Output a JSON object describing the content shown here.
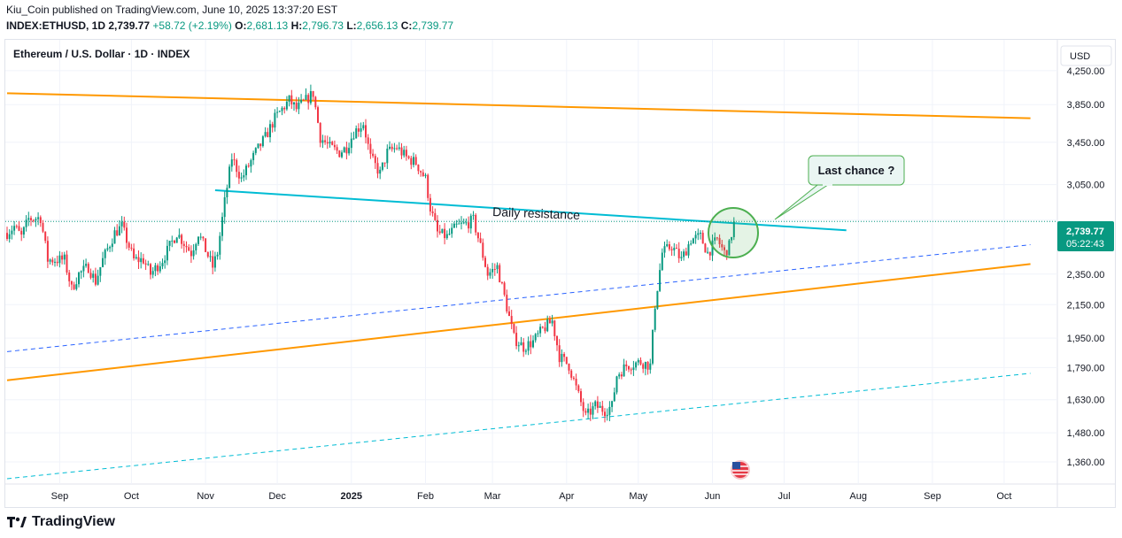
{
  "header": {
    "publisher_line": "Kiu_Coin published on TradingView.com, June 10, 2025 13:37:20 EST",
    "symbol": "INDEX:ETHUSD, 1D",
    "last": "2,739.77",
    "change": "+58.72 (+2.19%)",
    "o_label": "O:",
    "o_value": "2,681.13",
    "h_label": "H:",
    "h_value": "2,796.73",
    "l_label": "L:",
    "l_value": "2,656.13",
    "c_label": "C:",
    "c_value": "2,739.77"
  },
  "chart_title": "Ethereum / U.S. Dollar · 1D · INDEX",
  "currency_button": "USD",
  "price_label": {
    "price": "2,739.77",
    "countdown": "05:22:43"
  },
  "annotations": {
    "daily_resistance": "Daily resistance",
    "callout": "Last chance ?"
  },
  "footer": {
    "brand": "TradingView"
  },
  "colors": {
    "up": "#089981",
    "down": "#f23645",
    "trendline": "#00bcd4",
    "channel": "#ff9800",
    "dashed_blue": "#2962ff",
    "circle": "#4caf50"
  },
  "chart_data": {
    "type": "candlestick",
    "yscale": "log",
    "ylim": [
      1275,
      4650
    ],
    "y_ticks": [
      4250,
      3850,
      3450,
      3050,
      2750,
      2350,
      2150,
      1950,
      1790,
      1630,
      1480,
      1360
    ],
    "y_tick_labels": [
      "4,250.00",
      "3,850.00",
      "3,450.00",
      "3,050.00",
      "",
      "2,350.00",
      "2,150.00",
      "1,950.00",
      "1,790.00",
      "1,630.00",
      "1,480.00",
      "1,360.00"
    ],
    "x_start": "2024-08-10",
    "x_ticks": [
      {
        "date": "2024-09-01",
        "label": "Sep"
      },
      {
        "date": "2024-10-01",
        "label": "Oct"
      },
      {
        "date": "2024-11-01",
        "label": "Nov"
      },
      {
        "date": "2024-12-01",
        "label": "Dec"
      },
      {
        "date": "2025-01-01",
        "label": "2025"
      },
      {
        "date": "2025-02-01",
        "label": "Feb"
      },
      {
        "date": "2025-03-01",
        "label": "Mar"
      },
      {
        "date": "2025-04-01",
        "label": "Apr"
      },
      {
        "date": "2025-05-01",
        "label": "May"
      },
      {
        "date": "2025-06-01",
        "label": "Jun"
      },
      {
        "date": "2025-07-01",
        "label": "Jul"
      },
      {
        "date": "2025-08-01",
        "label": "Aug"
      },
      {
        "date": "2025-09-01",
        "label": "Sep"
      },
      {
        "date": "2025-10-01",
        "label": "Oct"
      }
    ],
    "close_path": [
      [
        "2024-08-10",
        2650
      ],
      [
        "2024-08-13",
        2700
      ],
      [
        "2024-08-16",
        2620
      ],
      [
        "2024-08-19",
        2760
      ],
      [
        "2024-08-24",
        2770
      ],
      [
        "2024-08-27",
        2450
      ],
      [
        "2024-09-03",
        2450
      ],
      [
        "2024-09-06",
        2250
      ],
      [
        "2024-09-09",
        2350
      ],
      [
        "2024-09-13",
        2400
      ],
      [
        "2024-09-16",
        2300
      ],
      [
        "2024-09-19",
        2450
      ],
      [
        "2024-09-24",
        2650
      ],
      [
        "2024-09-27",
        2700
      ],
      [
        "2024-10-02",
        2450
      ],
      [
        "2024-10-06",
        2450
      ],
      [
        "2024-10-09",
        2350
      ],
      [
        "2024-10-14",
        2450
      ],
      [
        "2024-10-20",
        2650
      ],
      [
        "2024-10-26",
        2500
      ],
      [
        "2024-10-29",
        2650
      ],
      [
        "2024-11-04",
        2400
      ],
      [
        "2024-11-06",
        2500
      ],
      [
        "2024-11-09",
        2900
      ],
      [
        "2024-11-12",
        3300
      ],
      [
        "2024-11-16",
        3100
      ],
      [
        "2024-11-22",
        3350
      ],
      [
        "2024-11-26",
        3500
      ],
      [
        "2024-11-30",
        3700
      ],
      [
        "2024-12-06",
        3900
      ],
      [
        "2024-12-09",
        3800
      ],
      [
        "2024-12-13",
        3900
      ],
      [
        "2024-12-16",
        3980
      ],
      [
        "2024-12-19",
        3500
      ],
      [
        "2024-12-23",
        3400
      ],
      [
        "2024-12-27",
        3350
      ],
      [
        "2024-12-30",
        3400
      ],
      [
        "2025-01-02",
        3550
      ],
      [
        "2025-01-06",
        3650
      ],
      [
        "2025-01-09",
        3300
      ],
      [
        "2025-01-13",
        3150
      ],
      [
        "2025-01-16",
        3350
      ],
      [
        "2025-01-20",
        3400
      ],
      [
        "2025-01-24",
        3300
      ],
      [
        "2025-01-28",
        3250
      ],
      [
        "2025-02-01",
        3100
      ],
      [
        "2025-02-03",
        2850
      ],
      [
        "2025-02-06",
        2650
      ],
      [
        "2025-02-10",
        2620
      ],
      [
        "2025-02-14",
        2700
      ],
      [
        "2025-02-18",
        2720
      ],
      [
        "2025-02-21",
        2750
      ],
      [
        "2025-02-24",
        2550
      ],
      [
        "2025-02-27",
        2350
      ],
      [
        "2025-03-03",
        2400
      ],
      [
        "2025-03-06",
        2200
      ],
      [
        "2025-03-10",
        1950
      ],
      [
        "2025-03-14",
        1900
      ],
      [
        "2025-03-18",
        1930
      ],
      [
        "2025-03-22",
        2000
      ],
      [
        "2025-03-26",
        2050
      ],
      [
        "2025-03-29",
        1850
      ],
      [
        "2025-04-02",
        1800
      ],
      [
        "2025-04-06",
        1650
      ],
      [
        "2025-04-09",
        1550
      ],
      [
        "2025-04-13",
        1600
      ],
      [
        "2025-04-17",
        1580
      ],
      [
        "2025-04-20",
        1600
      ],
      [
        "2025-04-22",
        1750
      ],
      [
        "2025-04-26",
        1800
      ],
      [
        "2025-05-02",
        1820
      ],
      [
        "2025-05-06",
        1800
      ],
      [
        "2025-05-08",
        2150
      ],
      [
        "2025-05-11",
        2500
      ],
      [
        "2025-05-15",
        2550
      ],
      [
        "2025-05-19",
        2450
      ],
      [
        "2025-05-23",
        2600
      ],
      [
        "2025-05-27",
        2620
      ],
      [
        "2025-05-30",
        2500
      ],
      [
        "2025-06-03",
        2600
      ],
      [
        "2025-06-06",
        2500
      ],
      [
        "2025-06-08",
        2550
      ],
      [
        "2025-06-10",
        2740
      ]
    ],
    "lines": [
      {
        "name": "upper-channel",
        "style": "solid",
        "color": "#ff9800",
        "points": [
          [
            "2024-08-10",
            3980
          ],
          [
            "2025-10-12",
            3700
          ]
        ]
      },
      {
        "name": "lower-channel",
        "style": "solid",
        "color": "#ff9800",
        "points": [
          [
            "2024-08-10",
            1725
          ],
          [
            "2025-10-12",
            2420
          ]
        ]
      },
      {
        "name": "daily-resistance",
        "style": "solid",
        "color": "#00bcd4",
        "points": [
          [
            "2024-11-05",
            3000
          ],
          [
            "2025-07-27",
            2670
          ]
        ]
      },
      {
        "name": "blue-dashed",
        "style": "dashed",
        "color": "#2962ff",
        "points": [
          [
            "2024-08-10",
            1875
          ],
          [
            "2025-10-12",
            2560
          ]
        ]
      },
      {
        "name": "cyan-dashed",
        "style": "dashed",
        "color": "#00bcd4",
        "points": [
          [
            "2024-08-10",
            1295
          ],
          [
            "2025-10-12",
            1760
          ]
        ]
      }
    ]
  }
}
